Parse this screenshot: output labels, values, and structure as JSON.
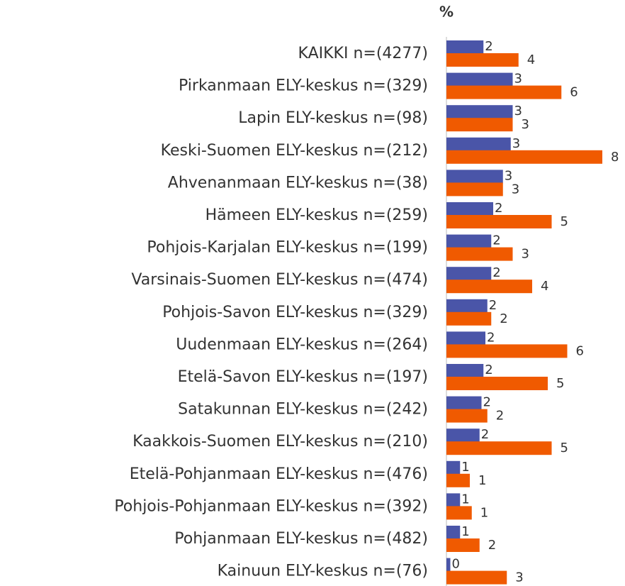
{
  "chart_data": {
    "type": "bar",
    "orientation": "horizontal",
    "title": "%",
    "categories": [
      "KAIKKI n=(4277)",
      "Pirkanmaan ELY-keskus n=(329)",
      "Lapin ELY-keskus n=(98)",
      "Keski-Suomen ELY-keskus n=(212)",
      "Ahvenanmaan ELY-keskus n=(38)",
      "Hämeen ELY-keskus n=(259)",
      "Pohjois-Karjalan ELY-keskus n=(199)",
      "Varsinais-Suomen ELY-keskus n=(474)",
      "Pohjois-Savon ELY-keskus n=(329)",
      "Uudenmaan ELY-keskus n=(264)",
      "Etelä-Savon ELY-keskus n=(197)",
      "Satakunnan ELY-keskus n=(242)",
      "Kaakkois-Suomen ELY-keskus n=(210)",
      "Etelä-Pohjanmaan ELY-keskus n=(476)",
      "Pohjois-Pohjanmaan ELY-keskus n=(392)",
      "Pohjanmaan ELY-keskus n=(482)",
      "Kainuun ELY-keskus n=(76)"
    ],
    "series": [
      {
        "color": "#4a55a8",
        "values": [
          1.9,
          3.4,
          3.4,
          3.3,
          2.9,
          2.4,
          2.3,
          2.3,
          2.1,
          2.0,
          1.9,
          1.8,
          1.7,
          0.7,
          0.7,
          0.7,
          0.2
        ],
        "value_labels": [
          "2",
          "3",
          "3",
          "3",
          "3",
          "2",
          "2",
          "2",
          "2",
          "2",
          "2",
          "2",
          "2",
          "1",
          "1",
          "1",
          "0"
        ]
      },
      {
        "color": "#f05a00",
        "values": [
          3.7,
          5.9,
          3.4,
          8.0,
          2.9,
          5.4,
          3.4,
          4.4,
          2.3,
          6.2,
          5.2,
          2.1,
          5.4,
          1.2,
          1.3,
          1.7,
          3.1
        ],
        "value_labels": [
          "4",
          "6",
          "3",
          "8",
          "3",
          "5",
          "3",
          "4",
          "2",
          "6",
          "5",
          "2",
          "5",
          "1",
          "1",
          "2",
          "3"
        ]
      }
    ],
    "xlim": [
      0,
      8
    ]
  }
}
